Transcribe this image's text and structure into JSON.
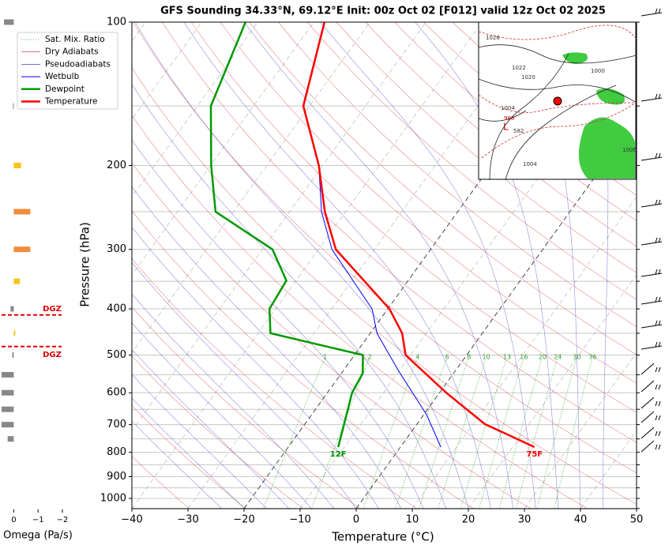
{
  "chart_data": {
    "type": "skewt",
    "title": "GFS Sounding 34.33°N, 69.12°E Init: 00z Oct 02 [F012] valid 12z Oct 02 2025",
    "xlabel": "Temperature (°C)",
    "ylabel": "Pressure (hPa)",
    "log_y": true,
    "xlim": [
      -40,
      50
    ],
    "ylim": [
      1050,
      100
    ],
    "xticks": [
      {
        "value": -40,
        "label": "−40"
      },
      {
        "value": -30,
        "label": "−30"
      },
      {
        "value": -20,
        "label": "−20"
      },
      {
        "value": -10,
        "label": "−10"
      },
      0,
      10,
      20,
      30,
      40,
      50
    ],
    "yticks": [
      100,
      200,
      300,
      400,
      500,
      600,
      700,
      800,
      900,
      1000
    ],
    "ygrid": [
      100,
      150,
      200,
      250,
      300,
      350,
      400,
      450,
      500,
      550,
      600,
      650,
      700,
      750,
      800,
      850,
      900,
      950,
      1000,
      1050
    ],
    "isotherms": {
      "color": "#999999",
      "highlight_color": "#333333",
      "highlight": [
        -20,
        0
      ]
    },
    "reference_lines": [
      {
        "name": "Sat. Mix. Ratio",
        "color": "#2ca02c",
        "values": [
          1,
          2,
          4,
          6,
          8,
          10,
          13,
          16,
          20,
          24,
          30,
          36
        ]
      },
      {
        "name": "Dry Adiabats",
        "color": "#d62728"
      },
      {
        "name": "Pseudoadiabats",
        "color": "#1f1fbf"
      }
    ],
    "series": [
      {
        "name": "Wetbulb",
        "color": "#0000ff",
        "pressure": [
          780,
          667,
          541,
          450,
          400,
          300,
          250,
          200,
          150,
          100
        ],
        "values": [
          7.2,
          0.5,
          -10,
          -18.8,
          -22.8,
          -37.6,
          -44.3,
          -50.7,
          -61.2,
          -68.2
        ]
      },
      {
        "name": "Dewpoint",
        "color": "#009900",
        "label": "12F",
        "pressure": [
          780,
          706,
          600,
          546,
          500,
          450,
          400,
          349,
          300,
          250,
          200,
          150,
          100
        ],
        "values": [
          -11.1,
          -12.8,
          -15.6,
          -16.2,
          -18.5,
          -37.8,
          -41.1,
          -41.7,
          -48.2,
          -63.2,
          -69.9,
          -77.6,
          -82.2
        ]
      },
      {
        "name": "Temperature",
        "color": "#ff0000",
        "label": "75F",
        "pressure": [
          780,
          698,
          600,
          500,
          450,
          400,
          300,
          250,
          200,
          150,
          100
        ],
        "values": [
          23.9,
          12.1,
          1.2,
          -10.9,
          -14.3,
          -19.7,
          -36.9,
          -43.7,
          -50.7,
          -61.1,
          -68.1
        ]
      }
    ],
    "omega": {
      "xlabel": "Omega (Pa/s)",
      "xlim": [
        0.5,
        -2.0
      ],
      "xticks": [
        0,
        {
          "value": -1,
          "label": "−1"
        },
        {
          "value": -2,
          "label": "−2"
        }
      ],
      "pressure": [
        100,
        150,
        200,
        250,
        300,
        350,
        400,
        450,
        500,
        550,
        600,
        650,
        700,
        750
      ],
      "values": [
        0.4,
        0.03,
        -0.3,
        -0.68,
        -0.68,
        -0.25,
        0.13,
        -0.06,
        0.06,
        0.5,
        0.5,
        0.5,
        0.5,
        0.25
      ],
      "colors": [
        "#888888",
        "#888888",
        "#f5c518",
        "#f08c3c",
        "#f08c3c",
        "#f5c518",
        "#888888",
        "#f5c518",
        "#888888",
        "#888888",
        "#888888",
        "#888888",
        "#888888",
        "#888888"
      ]
    },
    "dgz": {
      "pressures": [
        412,
        480
      ],
      "labels": [
        "DGZ",
        "DGZ"
      ],
      "color": "#e00000"
    },
    "map": {
      "labels": [
        "1026",
        "1022",
        "1020",
        "1004",
        "1000",
        "998",
        "582",
        "1006",
        "1004",
        "L"
      ]
    }
  }
}
